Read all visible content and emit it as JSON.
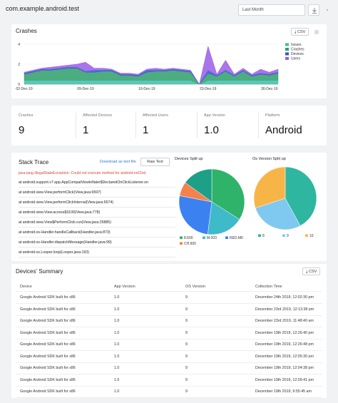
{
  "header": {
    "app_name": "com.example.android.test",
    "period_value": "Last Month"
  },
  "crashes_card": {
    "title": "Crashes",
    "csv_label": "CSV"
  },
  "chart_data": {
    "type": "area",
    "x": [
      "02-Dec-19",
      "03-Dec-19",
      "04-Dec-19",
      "05-Dec-19",
      "06-Dec-19",
      "07-Dec-19",
      "08-Dec-19",
      "09-Dec-19",
      "10-Dec-19",
      "11-Dec-19",
      "12-Dec-19",
      "13-Dec-19",
      "14-Dec-19",
      "15-Dec-19",
      "16-Dec-19",
      "17-Dec-19",
      "18-Dec-19",
      "19-Dec-19",
      "20-Dec-19",
      "21-Dec-19",
      "22-Dec-19",
      "23-Dec-19",
      "24-Dec-19",
      "25-Dec-19",
      "26-Dec-19",
      "27-Dec-19",
      "28-Dec-19",
      "29-Dec-19",
      "30-Dec-19",
      "31-Dec-19"
    ],
    "x_tick_labels": [
      "02-Dec-19",
      "09-Dec-19",
      "16-Dec-19",
      "23-Dec-19",
      "30-Dec-19"
    ],
    "y_tick_labels": [
      "0",
      "2",
      "4"
    ],
    "ylim": [
      0,
      4
    ],
    "legend_position": "right",
    "series": [
      {
        "name": "Issues",
        "color": "#3bbfa8",
        "values": [
          0.4,
          0.4,
          0.4,
          0.4,
          0.4,
          0.4,
          0.4,
          0.4,
          0.4,
          0.4,
          0.4,
          0.4,
          0.4,
          0.4,
          0.4,
          0.4,
          0.4,
          0.4,
          0.4,
          0.4,
          0,
          0.4,
          0.4,
          0.4,
          0.4,
          0.4,
          0.4,
          0.4,
          0.4,
          0.4
        ]
      },
      {
        "name": "Crashes",
        "color": "#2e9e6a",
        "values": [
          0.6,
          0.8,
          1.0,
          1.0,
          1.1,
          1.2,
          1.2,
          0.8,
          0.8,
          0.9,
          0.9,
          0.5,
          0.5,
          0.4,
          0.8,
          0.9,
          0.9,
          1.0,
          0.9,
          0.8,
          0,
          0.7,
          0.4,
          0.9,
          0.4,
          0.9,
          0.4,
          0.6,
          0.5,
          0.7
        ]
      },
      {
        "name": "Devices",
        "color": "#2d54d8",
        "values": [
          0.1,
          0.1,
          0.1,
          0.1,
          0.1,
          0.1,
          0.1,
          0.1,
          0.2,
          0.1,
          0.1,
          0.1,
          0.1,
          0.1,
          0.2,
          0.1,
          0.1,
          0.1,
          0.1,
          0.1,
          0,
          0.3,
          0.1,
          0.1,
          0.1,
          0.1,
          0.1,
          0.1,
          0.1,
          0.1
        ]
      },
      {
        "name": "Users",
        "color": "#9b5de5",
        "values": [
          0.1,
          0.1,
          0.1,
          0.2,
          0.2,
          0.2,
          0.3,
          0.9,
          0.2,
          0.2,
          0.1,
          0.1,
          0.1,
          0.1,
          0.1,
          0.2,
          0.1,
          0.1,
          0.1,
          0.1,
          0,
          2.4,
          0.1,
          1.0,
          0.1,
          0.2,
          0.1,
          0.4,
          0.2,
          0.3
        ]
      }
    ]
  },
  "stats": [
    {
      "label": "Crashes",
      "value": "9"
    },
    {
      "label": "Affected Devices",
      "value": "1"
    },
    {
      "label": "Affected Users",
      "value": "1"
    },
    {
      "label": "App Version",
      "value": "1.0"
    },
    {
      "label": "Platform",
      "value": "Android"
    }
  ],
  "stack_trace": {
    "title": "Stack Trace",
    "download_label": "Download as text file",
    "raw_label": "Raw Text",
    "error_line": "java.lang.IllegalStateException: Could not execute method for android:onClick",
    "lines": [
      "at android.support.v7.app.AppCompatViewInflater$DeclaredOnClickListener.on",
      "at android.view.View.performClick(View.java:6597)",
      "at android.view.View.performClickInternal(View.java:6574)",
      "at android.view.View.access$3100(View.java:778)",
      "at android.view.View$PerformClick.run(View.java:25885)",
      "at android.os.Handler.handleCallback(Handler.java:873)",
      "at android.os.Handler.dispatchMessage(Handler.java:99)",
      "at android.os.Looper.loop(Looper.java:193)"
    ]
  },
  "devices_pie": {
    "title": "Devices Split up",
    "slices": [
      {
        "label": "8.600",
        "value": 34,
        "color": "#2fb36a"
      },
      {
        "label": "M.003",
        "value": 18,
        "color": "#3fbac9"
      },
      {
        "label": "RED.M6",
        "value": 26,
        "color": "#3b82f0"
      },
      {
        "label": "CH.600",
        "value": 7,
        "color": "#f6824b"
      },
      {
        "label": "",
        "value": 15,
        "color": "#1e9f88"
      }
    ]
  },
  "os_pie": {
    "title": "Os Version Split up",
    "slices": [
      {
        "label": "8",
        "value": 42,
        "color": "#2eb6a0"
      },
      {
        "label": "9",
        "value": 28,
        "color": "#7fc9f0"
      },
      {
        "label": "10",
        "value": 30,
        "color": "#f8b547"
      }
    ]
  },
  "summary": {
    "title": "Devices' Summary",
    "csv_label": "CSV",
    "columns": [
      "Device",
      "App Version",
      "OS Version",
      "Collection Time"
    ],
    "rows": [
      [
        "Google Android SDK built for x86",
        "1.0",
        "9",
        "December 24th 2019, 12:02:30 pm"
      ],
      [
        "Google Android SDK built for x86",
        "1.0",
        "9",
        "December 23rd 2019, 12:13:38 pm"
      ],
      [
        "Google Android SDK built for x86",
        "1.0",
        "9",
        "December 23rd 2019, 11:48:40 am"
      ],
      [
        "Google Android SDK built for x86",
        "1.0",
        "9",
        "December 19th 2019, 12:26:40 pm"
      ],
      [
        "Google Android SDK built for x86",
        "1.0",
        "9",
        "December 19th 2019, 12:26:48 pm"
      ],
      [
        "Google Android SDK built for x86",
        "1.0",
        "9",
        "December 19th 2019, 12:05:30 pm"
      ],
      [
        "Google Android SDK built for x86",
        "1.0",
        "9",
        "December 19th 2019, 12:04:38 pm"
      ],
      [
        "Google Android SDK built for x86",
        "1.0",
        "9",
        "December 19th 2019, 12:09:41 pm"
      ],
      [
        "Google Android SDK built for x86",
        "1.0",
        "9",
        "December 19th 2019, 9:55:45 am"
      ]
    ]
  }
}
